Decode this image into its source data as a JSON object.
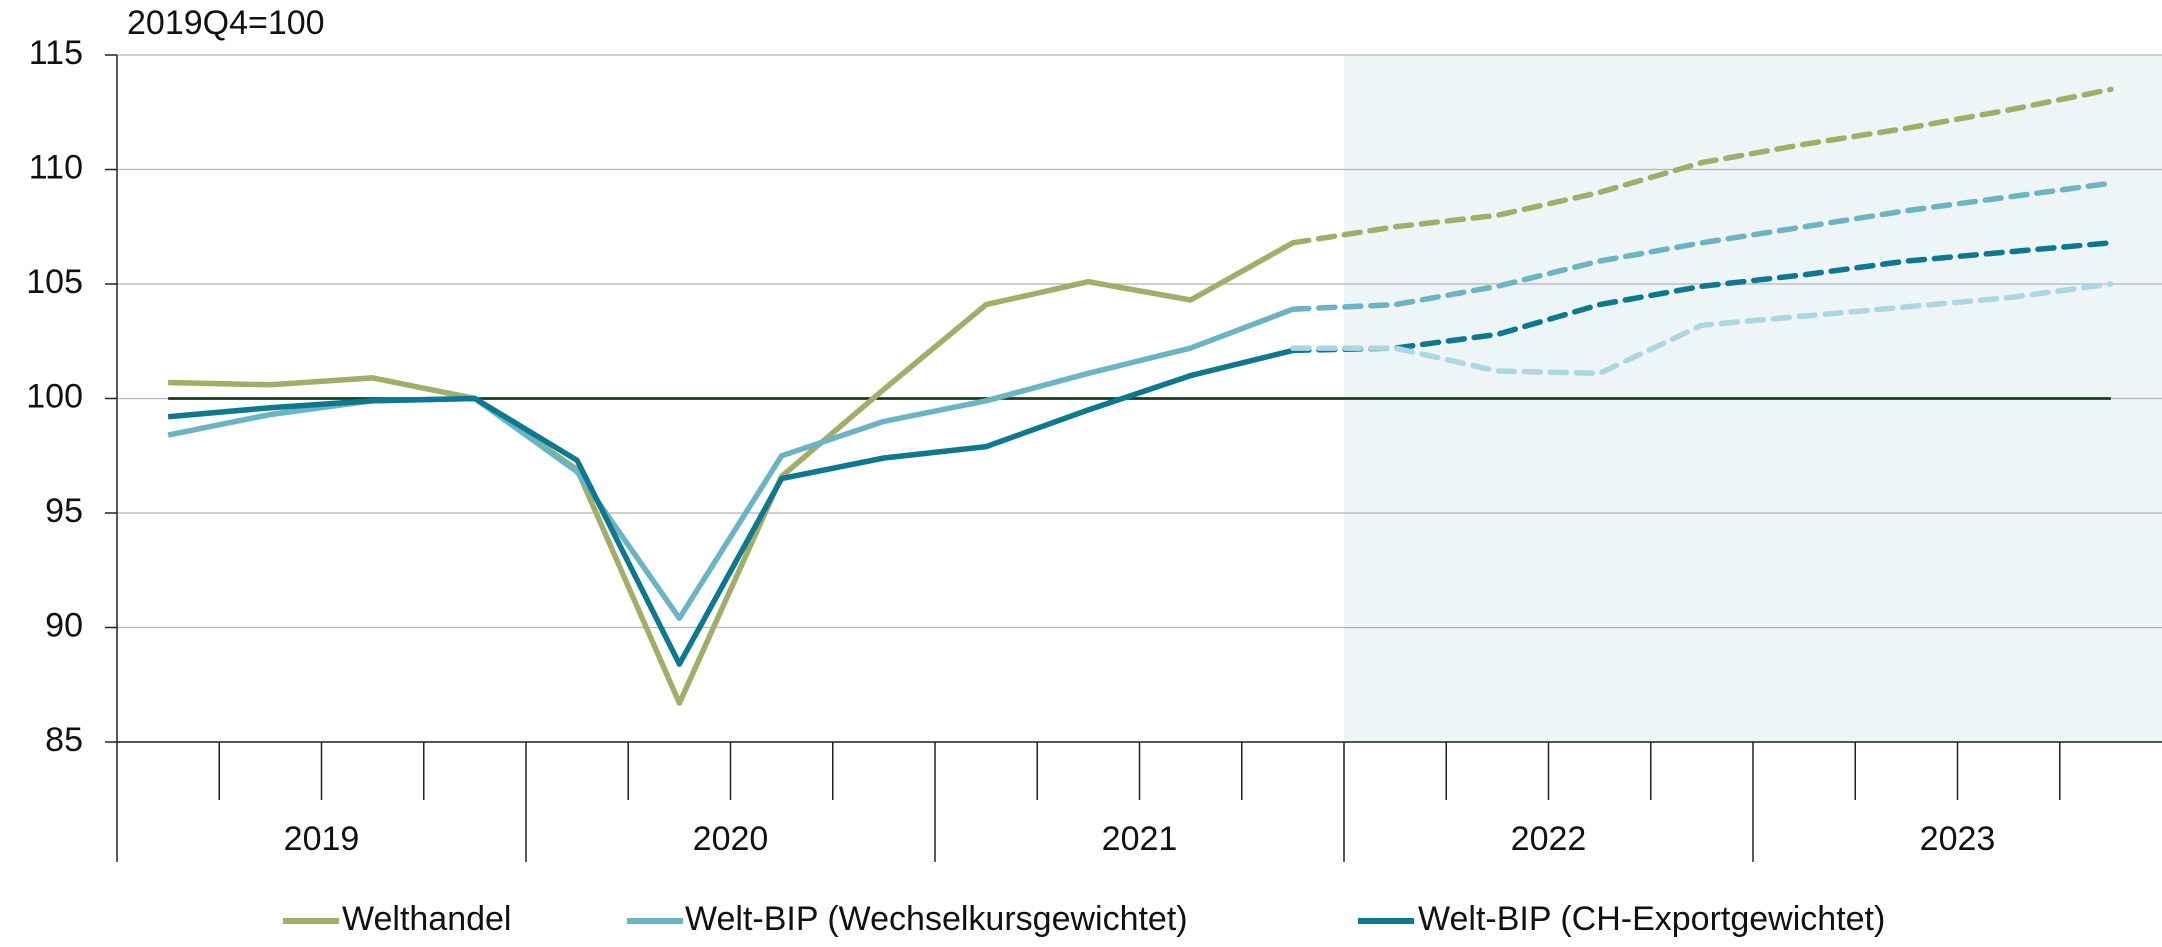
{
  "chart_data": {
    "type": "line",
    "y_axis_label": "2019Q4=100",
    "categories": [
      null,
      null,
      null,
      null,
      null,
      null,
      null,
      null,
      null,
      null,
      null,
      null,
      null,
      null,
      null,
      null,
      null,
      null,
      null,
      null
    ],
    "years": [
      "2019",
      "2020",
      "2021",
      "2022",
      "2023"
    ],
    "quarters_per_year": 4,
    "forecast_from": 11,
    "shaded_from": 12,
    "reference_line": 100,
    "ylim": [
      85,
      115
    ],
    "yticks": [
      85,
      90,
      95,
      100,
      105,
      110,
      115
    ],
    "grid": true,
    "legend": "bottom",
    "series": [
      {
        "name": "Welthandel",
        "color": "#a3ad6a",
        "values": [
          100.7,
          100.6,
          100.9,
          100,
          96.9,
          86.7,
          96.6,
          100.4,
          104.1,
          105.1,
          104.3,
          106.8,
          107.5,
          108.0,
          109.0,
          110.3,
          111.1,
          111.8,
          112.6,
          113.5
        ]
      },
      {
        "name": "Welt-BIP (Wechselkursgewichtet)",
        "color": "#6ab4c4",
        "values": [
          98.4,
          99.3,
          99.9,
          100,
          96.8,
          90.4,
          97.5,
          99.0,
          99.9,
          101.1,
          102.2,
          103.9,
          104.1,
          104.9,
          106.0,
          106.8,
          107.5,
          108.2,
          108.8,
          109.4
        ]
      },
      {
        "name": "Welt-BIP (CH-Exportgewichtet)",
        "color": "#0e7890",
        "values": [
          99.2,
          99.6,
          99.9,
          100,
          97.3,
          88.4,
          96.5,
          97.4,
          97.9,
          99.5,
          101.0,
          102.1,
          102.2,
          102.8,
          104.1,
          104.9,
          105.4,
          106.0,
          106.4,
          106.8
        ]
      },
      {
        "color": "#acd6e1",
        "values": [
          null,
          null,
          null,
          null,
          null,
          null,
          null,
          null,
          null,
          null,
          null,
          102.2,
          102.2,
          101.2,
          101.1,
          103.2,
          103.6,
          104.0,
          104.4,
          105.0
        ]
      }
    ]
  }
}
